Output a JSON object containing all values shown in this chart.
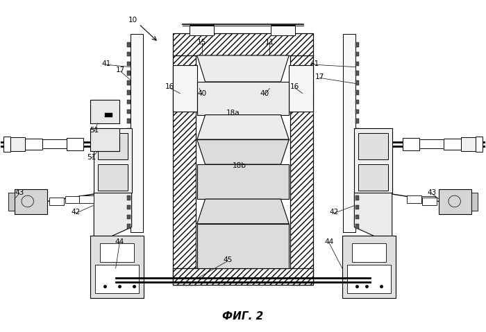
{
  "bg_color": "#ffffff",
  "line_color": "#000000",
  "fig_width": 7.0,
  "fig_height": 4.79,
  "dpi": 100,
  "title": "ФИГ. 2"
}
